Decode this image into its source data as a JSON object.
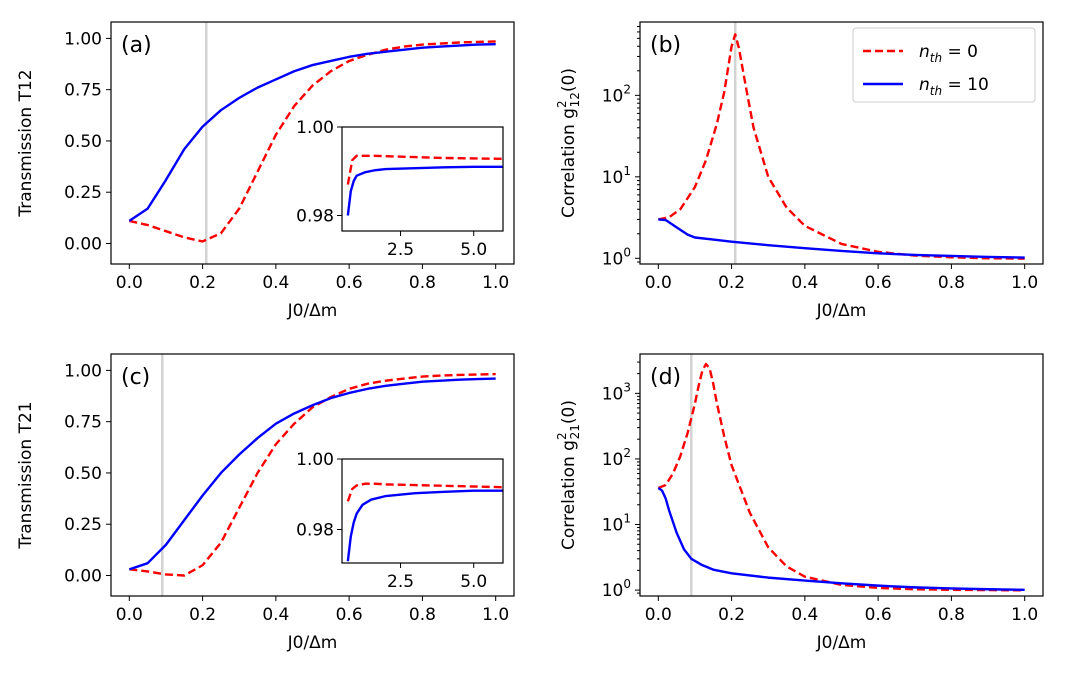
{
  "colors": {
    "red": "#ff0000",
    "blue": "#0000ff",
    "vline": "#d3d3d3"
  },
  "legend": {
    "entries": [
      {
        "label": "n_th = 0",
        "color": "#ff0000",
        "dash": true
      },
      {
        "label": "n_th = 10",
        "color": "#0000ff",
        "dash": false
      }
    ]
  },
  "chart_data": [
    {
      "id": "a",
      "panel_label": "(a)",
      "type": "line",
      "yscale": "linear",
      "xlabel": "J0/Δm",
      "ylabel": "Transmission T12",
      "xlim": [
        -0.05,
        1.05
      ],
      "ylim": [
        -0.1,
        1.08
      ],
      "xticks": [
        0.0,
        0.2,
        0.4,
        0.6,
        0.8,
        1.0
      ],
      "xtick_labels": [
        "0.0",
        "0.2",
        "0.4",
        "0.6",
        "0.8",
        "1.0"
      ],
      "yticks": [
        0.0,
        0.25,
        0.5,
        0.75,
        1.0
      ],
      "ytick_labels": [
        "0.00",
        "0.25",
        "0.50",
        "0.75",
        "1.00"
      ],
      "vline": 0.21,
      "series": [
        {
          "name": "n_th = 0",
          "color": "#ff0000",
          "dash": true,
          "x": [
            0,
            0.05,
            0.1,
            0.15,
            0.2,
            0.25,
            0.3,
            0.35,
            0.4,
            0.45,
            0.5,
            0.55,
            0.6,
            0.65,
            0.7,
            0.75,
            0.8,
            0.85,
            0.9,
            0.95,
            1.0
          ],
          "y": [
            0.11,
            0.09,
            0.06,
            0.03,
            0.01,
            0.05,
            0.17,
            0.35,
            0.53,
            0.67,
            0.77,
            0.84,
            0.89,
            0.92,
            0.945,
            0.96,
            0.97,
            0.975,
            0.98,
            0.983,
            0.985
          ]
        },
        {
          "name": "n_th = 10",
          "color": "#0000ff",
          "dash": false,
          "x": [
            0,
            0.05,
            0.1,
            0.15,
            0.2,
            0.25,
            0.3,
            0.35,
            0.4,
            0.45,
            0.5,
            0.55,
            0.6,
            0.65,
            0.7,
            0.75,
            0.8,
            0.85,
            0.9,
            0.95,
            1.0
          ],
          "y": [
            0.11,
            0.17,
            0.31,
            0.46,
            0.57,
            0.65,
            0.71,
            0.76,
            0.8,
            0.84,
            0.87,
            0.89,
            0.91,
            0.925,
            0.935,
            0.945,
            0.955,
            0.96,
            0.965,
            0.97,
            0.972
          ]
        }
      ],
      "inset": {
        "xlim": [
          0.5,
          6.0
        ],
        "ylim": [
          0.9765,
          1.0
        ],
        "xticks": [
          2.5,
          5.0
        ],
        "xtick_labels": [
          "2.5",
          "5.0"
        ],
        "yticks": [
          0.98,
          1.0
        ],
        "ytick_labels": [
          "0.98",
          "1.00"
        ],
        "series": [
          {
            "name": "n_th = 0",
            "color": "#ff0000",
            "dash": true,
            "x": [
              0.7,
              0.85,
              1.0,
              1.3,
              1.6,
              2.0,
              3.0,
              4.0,
              5.0,
              6.0
            ],
            "y": [
              0.987,
              0.9925,
              0.9935,
              0.9935,
              0.9935,
              0.9934,
              0.9932,
              0.993,
              0.9929,
              0.9928
            ]
          },
          {
            "name": "n_th = 10",
            "color": "#0000ff",
            "dash": false,
            "x": [
              0.7,
              0.8,
              0.9,
              1.0,
              1.3,
              1.6,
              2.0,
              3.0,
              4.0,
              5.0,
              6.0
            ],
            "y": [
              0.98,
              0.9855,
              0.9878,
              0.989,
              0.9898,
              0.9902,
              0.9905,
              0.9907,
              0.9909,
              0.991,
              0.991
            ]
          }
        ]
      }
    },
    {
      "id": "b",
      "panel_label": "(b)",
      "type": "line",
      "yscale": "log",
      "xlabel": "J0/Δm",
      "ylabel": "Correlation g2_12(0)",
      "xlim": [
        -0.05,
        1.05
      ],
      "ylim_log10": [
        -0.07,
        2.9
      ],
      "xticks": [
        0.0,
        0.2,
        0.4,
        0.6,
        0.8,
        1.0
      ],
      "xtick_labels": [
        "0.0",
        "0.2",
        "0.4",
        "0.6",
        "0.8",
        "1.0"
      ],
      "yticks_log10": [
        0,
        1,
        2
      ],
      "ytick_labels": [
        "10^0",
        "10^1",
        "10^2"
      ],
      "vline": 0.21,
      "series": [
        {
          "name": "n_th = 0",
          "color": "#ff0000",
          "dash": true,
          "x": [
            0,
            0.03,
            0.06,
            0.1,
            0.13,
            0.16,
            0.18,
            0.2,
            0.21,
            0.22,
            0.24,
            0.26,
            0.3,
            0.35,
            0.4,
            0.5,
            0.6,
            0.7,
            0.8,
            0.9,
            1.0
          ],
          "y": [
            3.0,
            3.2,
            4.0,
            7.5,
            16,
            45,
            110,
            400,
            560,
            380,
            120,
            40,
            10,
            4.2,
            2.5,
            1.5,
            1.2,
            1.08,
            1.03,
            1.0,
            0.99
          ]
        },
        {
          "name": "n_th = 10",
          "color": "#0000ff",
          "dash": false,
          "x": [
            0,
            0.02,
            0.05,
            0.08,
            0.1,
            0.15,
            0.2,
            0.3,
            0.4,
            0.5,
            0.6,
            0.7,
            0.8,
            0.9,
            1.0
          ],
          "y": [
            3.0,
            2.95,
            2.4,
            1.95,
            1.8,
            1.7,
            1.6,
            1.45,
            1.33,
            1.23,
            1.15,
            1.1,
            1.07,
            1.04,
            1.02
          ]
        }
      ]
    },
    {
      "id": "c",
      "panel_label": "(c)",
      "type": "line",
      "yscale": "linear",
      "xlabel": "J0/Δm",
      "ylabel": "Transmission T21",
      "xlim": [
        -0.05,
        1.05
      ],
      "ylim": [
        -0.1,
        1.08
      ],
      "xticks": [
        0.0,
        0.2,
        0.4,
        0.6,
        0.8,
        1.0
      ],
      "xtick_labels": [
        "0.0",
        "0.2",
        "0.4",
        "0.6",
        "0.8",
        "1.0"
      ],
      "yticks": [
        0.0,
        0.25,
        0.5,
        0.75,
        1.0
      ],
      "ytick_labels": [
        "0.00",
        "0.25",
        "0.50",
        "0.75",
        "1.00"
      ],
      "vline": 0.09,
      "series": [
        {
          "name": "n_th = 0",
          "color": "#ff0000",
          "dash": true,
          "x": [
            0,
            0.05,
            0.1,
            0.15,
            0.2,
            0.25,
            0.3,
            0.35,
            0.4,
            0.45,
            0.5,
            0.55,
            0.6,
            0.65,
            0.7,
            0.75,
            0.8,
            0.85,
            0.9,
            0.95,
            1.0
          ],
          "y": [
            0.03,
            0.02,
            0.005,
            0.0,
            0.05,
            0.16,
            0.33,
            0.5,
            0.64,
            0.74,
            0.82,
            0.87,
            0.91,
            0.935,
            0.95,
            0.96,
            0.97,
            0.975,
            0.978,
            0.98,
            0.982
          ]
        },
        {
          "name": "n_th = 10",
          "color": "#0000ff",
          "dash": false,
          "x": [
            0,
            0.05,
            0.1,
            0.15,
            0.2,
            0.25,
            0.3,
            0.35,
            0.4,
            0.45,
            0.5,
            0.55,
            0.6,
            0.65,
            0.7,
            0.75,
            0.8,
            0.85,
            0.9,
            0.95,
            1.0
          ],
          "y": [
            0.03,
            0.06,
            0.15,
            0.27,
            0.39,
            0.5,
            0.59,
            0.67,
            0.74,
            0.79,
            0.83,
            0.865,
            0.89,
            0.91,
            0.925,
            0.935,
            0.945,
            0.95,
            0.955,
            0.958,
            0.96
          ]
        }
      ],
      "inset": {
        "xlim": [
          0.5,
          6.0
        ],
        "ylim": [
          0.9705,
          1.0
        ],
        "xticks": [
          2.5,
          5.0
        ],
        "xtick_labels": [
          "2.5",
          "5.0"
        ],
        "yticks": [
          0.98,
          1.0
        ],
        "ytick_labels": [
          "0.98",
          "1.00"
        ],
        "series": [
          {
            "name": "n_th = 0",
            "color": "#ff0000",
            "dash": true,
            "x": [
              0.7,
              0.85,
              1.0,
              1.3,
              1.6,
              2.0,
              3.0,
              4.0,
              5.0,
              6.0
            ],
            "y": [
              0.988,
              0.9915,
              0.9925,
              0.993,
              0.993,
              0.9928,
              0.9926,
              0.9924,
              0.9922,
              0.992
            ]
          },
          {
            "name": "n_th = 10",
            "color": "#0000ff",
            "dash": false,
            "x": [
              0.7,
              0.8,
              0.9,
              1.0,
              1.2,
              1.5,
              2.0,
              3.0,
              4.0,
              5.0,
              6.0
            ],
            "y": [
              0.971,
              0.978,
              0.982,
              0.9845,
              0.987,
              0.9885,
              0.9895,
              0.9903,
              0.9907,
              0.991,
              0.991
            ]
          }
        ]
      }
    },
    {
      "id": "d",
      "panel_label": "(d)",
      "type": "line",
      "yscale": "log",
      "xlabel": "J0/Δm",
      "ylabel": "Correlation g2_21(0)",
      "xlim": [
        -0.05,
        1.05
      ],
      "ylim_log10": [
        -0.09,
        3.6
      ],
      "xticks": [
        0.0,
        0.2,
        0.4,
        0.6,
        0.8,
        1.0
      ],
      "xtick_labels": [
        "0.0",
        "0.2",
        "0.4",
        "0.6",
        "0.8",
        "1.0"
      ],
      "yticks_log10": [
        0,
        1,
        2,
        3
      ],
      "ytick_labels": [
        "10^0",
        "10^1",
        "10^2",
        "10^3"
      ],
      "vline": 0.09,
      "series": [
        {
          "name": "n_th = 0",
          "color": "#ff0000",
          "dash": true,
          "x": [
            0,
            0.02,
            0.04,
            0.06,
            0.08,
            0.1,
            0.11,
            0.12,
            0.13,
            0.14,
            0.15,
            0.16,
            0.18,
            0.2,
            0.25,
            0.3,
            0.35,
            0.4,
            0.5,
            0.6,
            0.7,
            0.8,
            0.9,
            1.0
          ],
          "y": [
            36,
            40,
            60,
            110,
            250,
            700,
            1300,
            2200,
            2800,
            2400,
            1400,
            700,
            220,
            80,
            15,
            4.5,
            2.3,
            1.6,
            1.2,
            1.08,
            1.03,
            1.01,
            1.0,
            0.99
          ]
        },
        {
          "name": "n_th = 10",
          "color": "#0000ff",
          "dash": false,
          "x": [
            0,
            0.01,
            0.02,
            0.03,
            0.05,
            0.07,
            0.09,
            0.12,
            0.15,
            0.2,
            0.3,
            0.4,
            0.5,
            0.6,
            0.7,
            0.8,
            0.9,
            1.0
          ],
          "y": [
            36,
            33,
            25,
            16,
            7.5,
            4.2,
            3.0,
            2.4,
            2.05,
            1.8,
            1.55,
            1.4,
            1.27,
            1.17,
            1.1,
            1.06,
            1.03,
            1.01
          ]
        }
      ]
    }
  ]
}
